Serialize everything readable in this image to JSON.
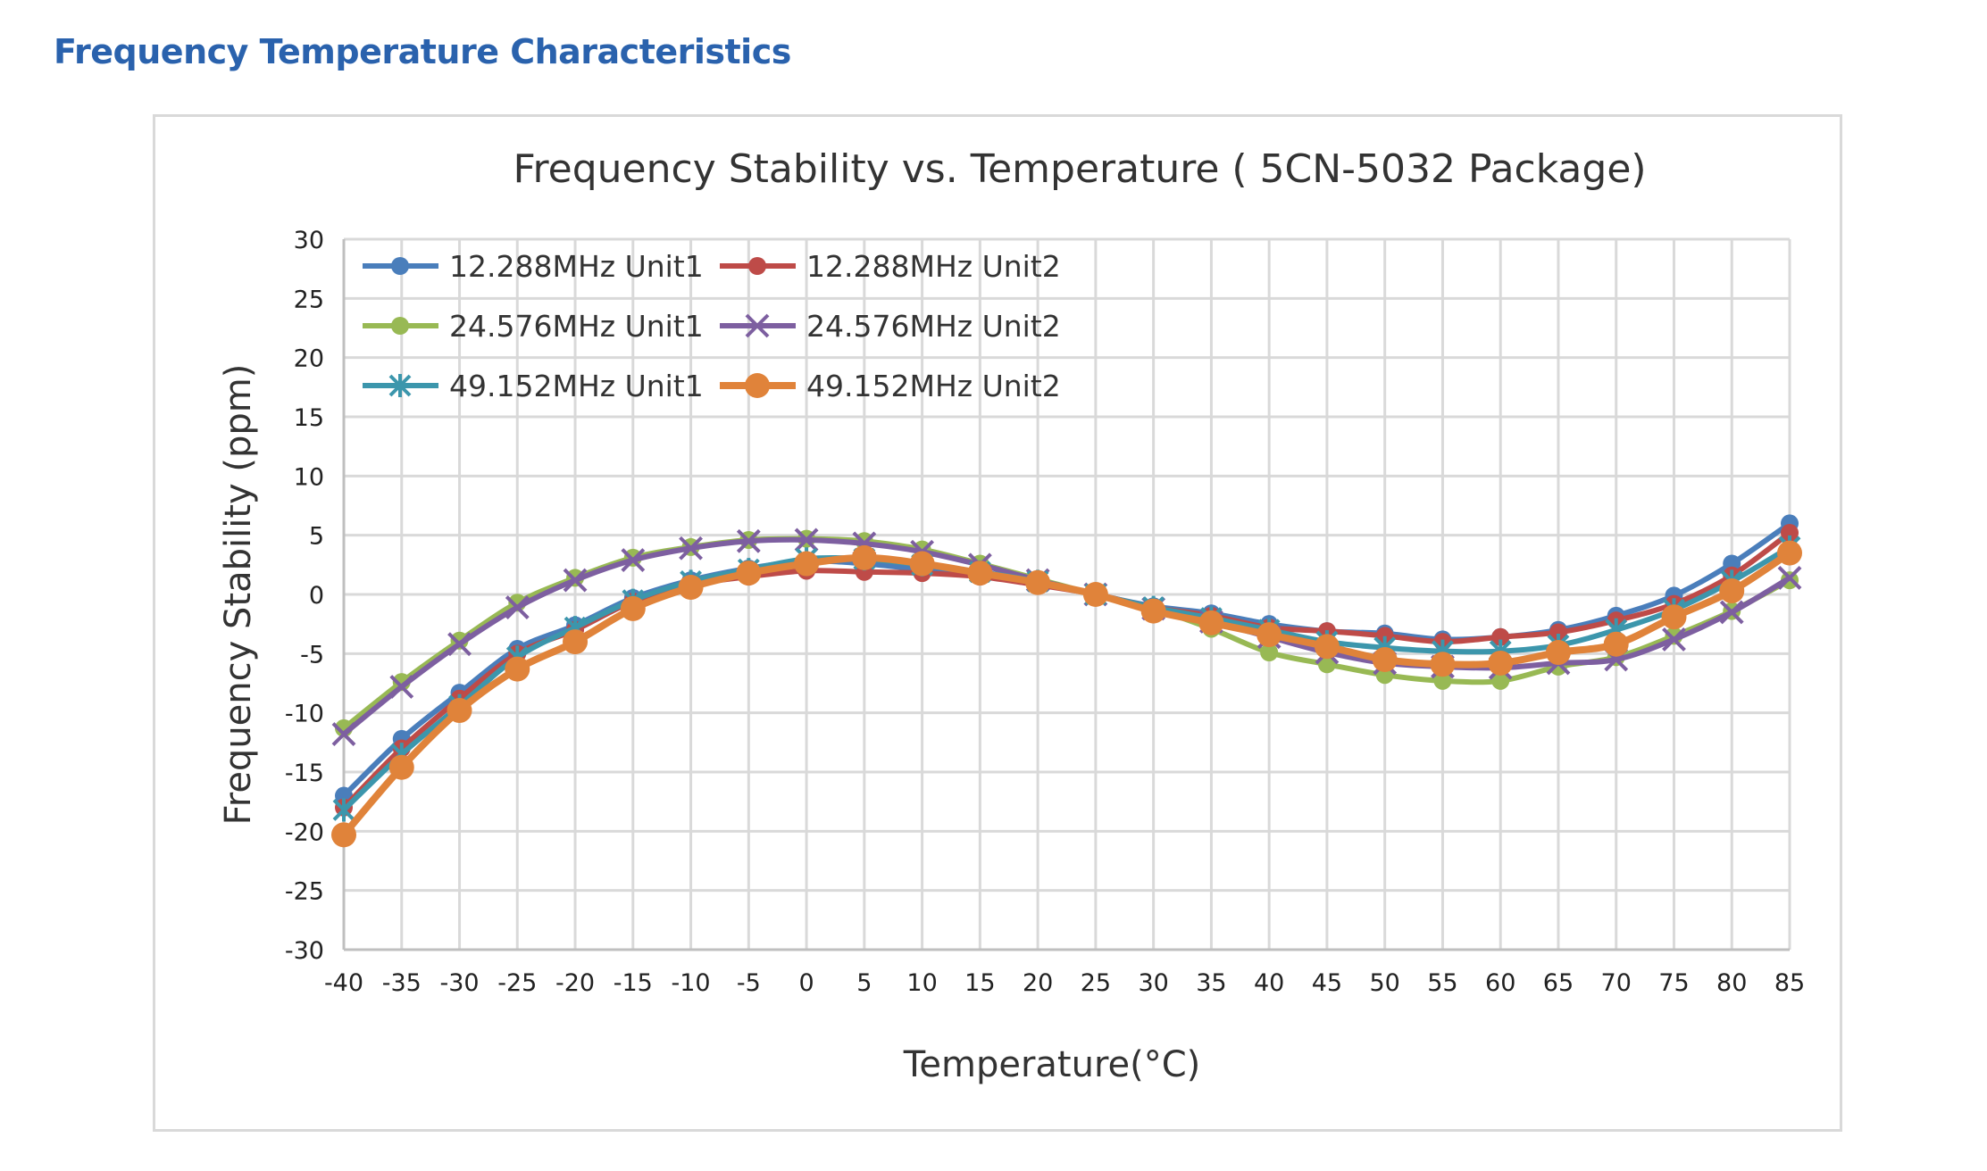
{
  "heading": "Frequency Temperature Characteristics",
  "chart_data": {
    "type": "line",
    "title": "Frequency Stability vs. Temperature ( 5CN-5032 Package)",
    "xlabel": "Temperature(°C)",
    "ylabel": "Frequency Stability (ppm)",
    "xlim": [
      -40,
      85
    ],
    "ylim": [
      -30,
      30
    ],
    "x": [
      -40,
      -35,
      -30,
      -25,
      -20,
      -15,
      -10,
      -5,
      0,
      5,
      10,
      15,
      20,
      25,
      30,
      35,
      40,
      45,
      50,
      55,
      60,
      65,
      70,
      75,
      80,
      85
    ],
    "x_ticks": [
      "-40",
      "-35",
      "-30",
      "-25",
      "-20",
      "-15",
      "-10",
      "-5",
      "0",
      "5",
      "10",
      "15",
      "20",
      "25",
      "30",
      "35",
      "40",
      "45",
      "50",
      "55",
      "60",
      "65",
      "70",
      "75",
      "80",
      "85"
    ],
    "y_ticks": [
      "30",
      "25",
      "20",
      "15",
      "10",
      "5",
      "0",
      "-5",
      "-10",
      "-15",
      "-20",
      "-25",
      "-30"
    ],
    "grid": true,
    "legend_position": "top-left",
    "series": [
      {
        "name": "12.288MHz Unit1",
        "color": "#4a7ebb",
        "marker": "circle",
        "values": [
          -17,
          -12.2,
          -8.3,
          -4.6,
          -2.6,
          -0.3,
          1.2,
          2.2,
          2.8,
          2.6,
          2.1,
          1.7,
          1.0,
          0,
          -1.0,
          -1.6,
          -2.5,
          -3.1,
          -3.3,
          -3.8,
          -3.6,
          -3.0,
          -1.8,
          -0.1,
          2.6,
          6.0
        ]
      },
      {
        "name": "12.288MHz Unit2",
        "color": "#be4b48",
        "marker": "circle",
        "values": [
          -18,
          -13,
          -8.8,
          -5.0,
          -3.0,
          -0.6,
          0.8,
          1.5,
          2.0,
          1.9,
          1.8,
          1.5,
          0.8,
          0,
          -1.1,
          -1.8,
          -2.8,
          -3.1,
          -3.5,
          -4.0,
          -3.6,
          -3.2,
          -2.2,
          -0.8,
          1.6,
          5.2
        ]
      },
      {
        "name": "24.576MHz Unit1",
        "color": "#98b954",
        "marker": "circle",
        "values": [
          -11.3,
          -7.4,
          -3.9,
          -0.7,
          1.4,
          3.1,
          4.0,
          4.6,
          4.7,
          4.5,
          3.8,
          2.6,
          1.3,
          0,
          -1.2,
          -2.9,
          -4.9,
          -5.9,
          -6.8,
          -7.3,
          -7.3,
          -6.1,
          -5.3,
          -3.5,
          -1.4,
          1.2
        ]
      },
      {
        "name": "24.576MHz Unit2",
        "color": "#7d5fa0",
        "marker": "x",
        "values": [
          -11.8,
          -7.8,
          -4.2,
          -1.1,
          1.2,
          2.9,
          3.9,
          4.5,
          4.6,
          4.3,
          3.6,
          2.5,
          1.2,
          0,
          -1.2,
          -2.3,
          -3.6,
          -4.9,
          -5.8,
          -6.1,
          -6.2,
          -5.8,
          -5.5,
          -3.8,
          -1.5,
          1.4
        ]
      },
      {
        "name": "49.152MHz Unit1",
        "color": "#3c96ac",
        "marker": "star",
        "values": [
          -18.2,
          -13.5,
          -9.4,
          -5.3,
          -2.8,
          -0.5,
          1.1,
          2.1,
          3.0,
          3.0,
          2.5,
          1.9,
          1.1,
          0,
          -1.1,
          -2.0,
          -3.0,
          -4.0,
          -4.5,
          -4.8,
          -4.8,
          -4.3,
          -3.0,
          -1.3,
          1.1,
          4.0
        ]
      },
      {
        "name": "49.152MHz Unit2",
        "color": "#e0833a",
        "marker": "circle-large",
        "values": [
          -20.3,
          -14.6,
          -9.8,
          -6.3,
          -4.0,
          -1.2,
          0.6,
          1.8,
          2.6,
          3.1,
          2.6,
          1.8,
          1.0,
          0,
          -1.4,
          -2.4,
          -3.4,
          -4.4,
          -5.5,
          -5.9,
          -5.8,
          -4.9,
          -4.2,
          -1.9,
          0.3,
          3.5
        ]
      }
    ]
  }
}
